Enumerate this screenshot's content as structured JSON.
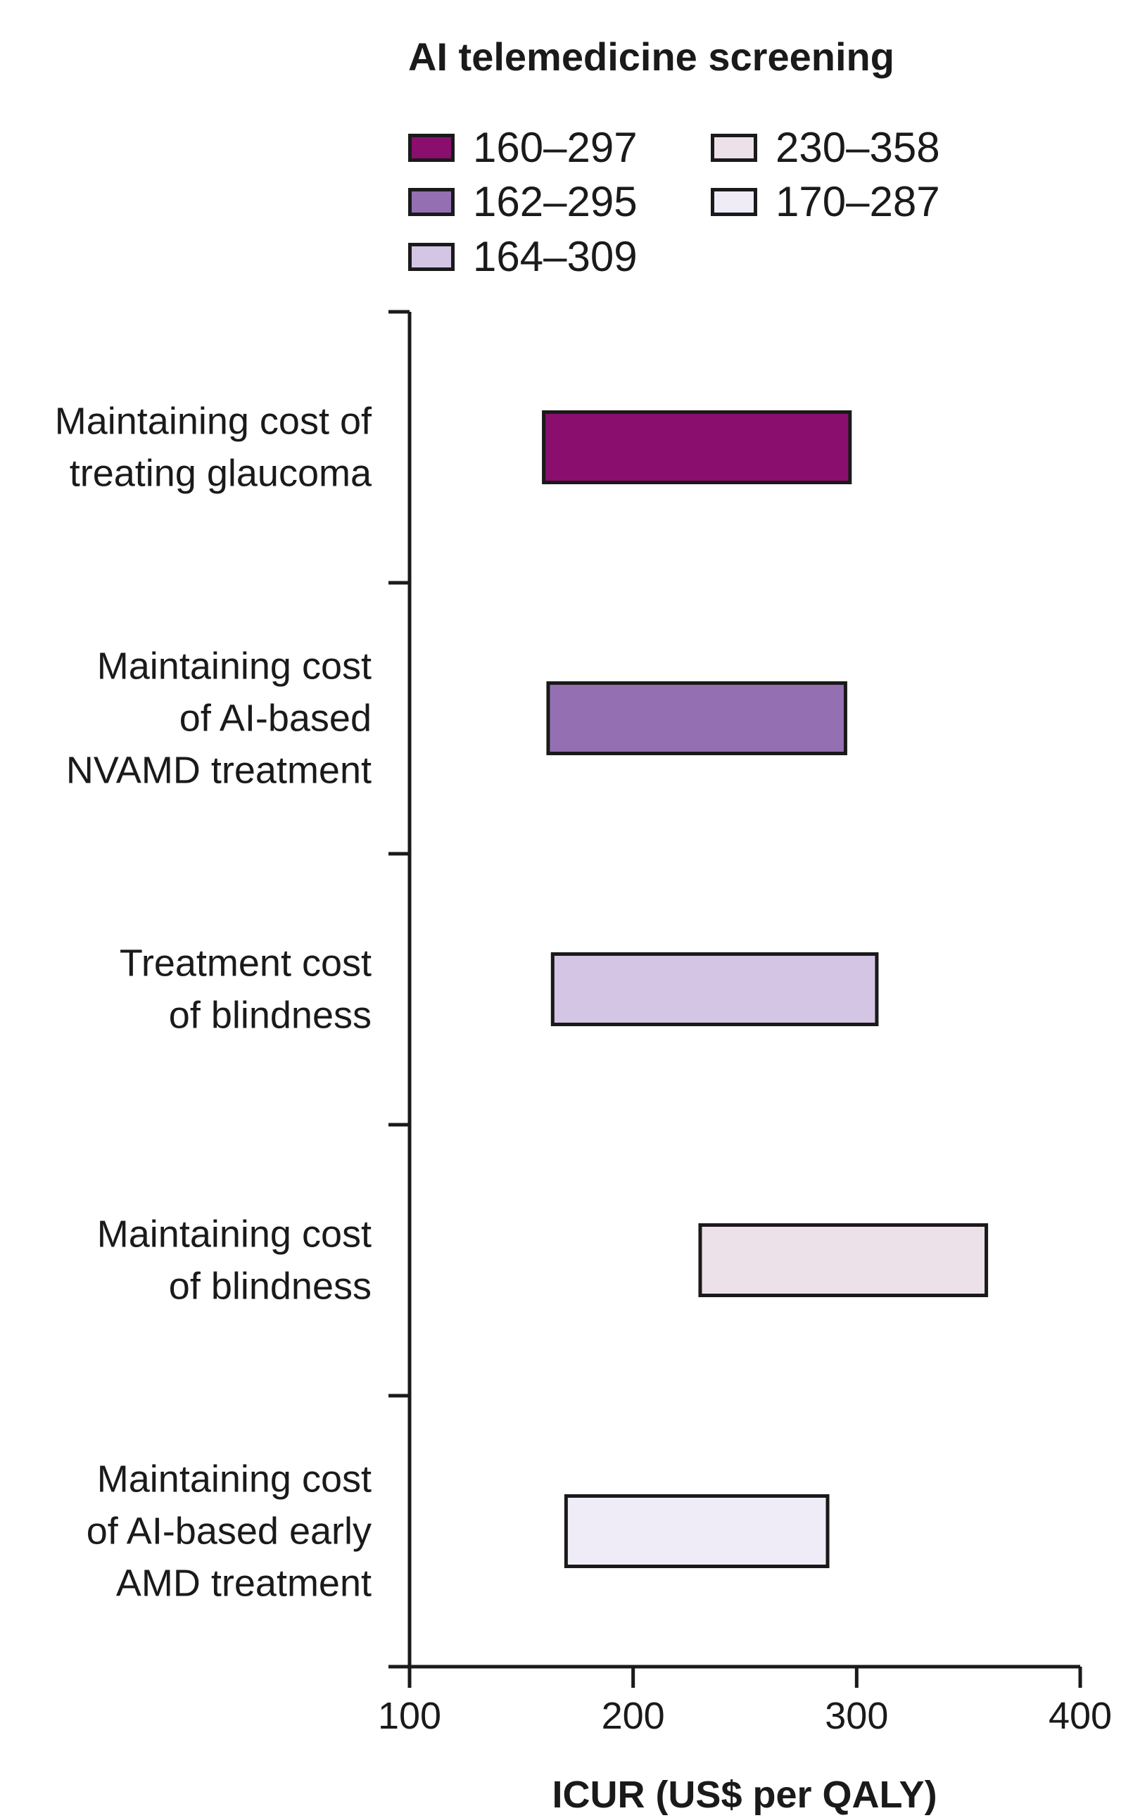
{
  "chart_data": {
    "type": "bar",
    "orientation": "horizontal-range",
    "title": "AI telemedicine screening",
    "xlabel": "ICUR (US$ per QALY)",
    "xlim": [
      100,
      400
    ],
    "xticks": [
      "100",
      "200",
      "300",
      "400"
    ],
    "legend_position": "top",
    "series": [
      {
        "name": "160–297",
        "category": [
          "Maintaining cost of",
          "treating glaucoma"
        ],
        "low": 160,
        "high": 297,
        "color": "#8a0e6e"
      },
      {
        "name": "162–295",
        "category": [
          "Maintaining cost",
          "of AI-based",
          "NVAMD treatment"
        ],
        "low": 162,
        "high": 295,
        "color": "#9470b3"
      },
      {
        "name": "164–309",
        "category": [
          "Treatment cost",
          "of blindness"
        ],
        "low": 164,
        "high": 309,
        "color": "#d3c5e3"
      },
      {
        "name": "230–358",
        "category": [
          "Maintaining cost",
          "of blindness"
        ],
        "low": 230,
        "high": 358,
        "color": "#ece0e9"
      },
      {
        "name": "170–287",
        "category": [
          "Maintaining cost",
          "of AI-based early",
          "AMD treatment"
        ],
        "low": 170,
        "high": 287,
        "color": "#efecf7"
      }
    ]
  }
}
